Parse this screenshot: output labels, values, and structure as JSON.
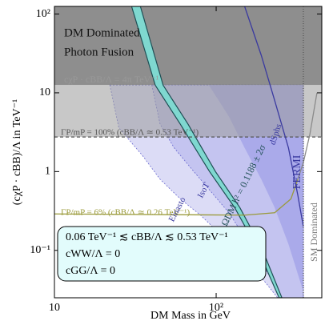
{
  "chart_data": {
    "type": "region",
    "xlabel": "DM Mass in GeV",
    "ylabel": "(cχP · cBB)/Λ  in TeV⁻¹",
    "xlim": [
      10,
      450
    ],
    "ylim": [
      0.025,
      125
    ],
    "log": true,
    "xticks": [
      10,
      {
        "value": 100,
        "label": "10²"
      }
    ],
    "yticks": [
      {
        "value": 0.1,
        "label": "10⁻¹"
      },
      1,
      10,
      {
        "value": 100,
        "label": "10²"
      }
    ],
    "regions": [
      {
        "color": "#dcdcf6",
        "x": [
          22,
          25,
          35,
          45,
          60,
          80,
          110,
          150,
          200,
          240,
          346,
          346
        ],
        "y": [
          12.57,
          3.6,
          1.6,
          0.8,
          0.45,
          0.28,
          0.15,
          0.07,
          0.04,
          0.025,
          0.025,
          12.57
        ]
      },
      {
        "color": "#c4c4f0",
        "x": [
          40,
          45,
          55,
          70,
          90,
          120,
          160,
          210,
          250,
          346,
          346
        ],
        "y": [
          12.57,
          4,
          2,
          1.1,
          0.6,
          0.3,
          0.12,
          0.05,
          0.025,
          0.025,
          12.57
        ]
      },
      {
        "color": "#aaaaea",
        "x": [
          90,
          120,
          150,
          190,
          230,
          280,
          320,
          346,
          346
        ],
        "y": [
          12.57,
          5,
          2,
          0.8,
          0.35,
          0.12,
          0.05,
          0.03,
          12.57
        ]
      },
      {
        "color": "#7a7a7a",
        "opacity": 0.85,
        "x": [
          10,
          450,
          450,
          10
        ],
        "y": [
          12.57,
          12.57,
          125,
          125
        ]
      },
      {
        "color": "#9a9a9a",
        "opacity": 0.55,
        "x": [
          10,
          450,
          450,
          10
        ],
        "y": [
          2.75,
          2.75,
          12.57,
          12.57
        ]
      }
    ],
    "band": {
      "color": "#7fd8d0",
      "edge": "#1f4f55",
      "x": [
        30,
        42,
        60,
        91,
        130,
        182,
        245
      ],
      "x_right": [
        34,
        47,
        67,
        99,
        140,
        194,
        255
      ],
      "y": [
        125,
        12.5,
        4,
        1,
        0.35,
        0.1,
        0.025
      ]
    },
    "lines": [
      {
        "color": "#555555",
        "dash": "4 3",
        "x": [
          10,
          450
        ],
        "y": [
          2.75,
          2.75
        ]
      },
      {
        "color": "#9a9a3a",
        "dash": "",
        "x": [
          10,
          150,
          230,
          290,
          320
        ],
        "y": [
          0.29,
          0.28,
          0.3,
          0.45,
          0.8
        ]
      },
      {
        "color": "#8a8a8a",
        "dash": "",
        "x": [
          320,
          346,
          380,
          420
        ],
        "y": [
          0.8,
          1.3,
          3,
          10
        ]
      },
      {
        "color": "#3a3aa0",
        "dash": "",
        "x": [
          150,
          190,
          230,
          280,
          320,
          346
        ],
        "y": [
          125,
          30,
          8,
          2,
          0.5,
          0.2
        ]
      },
      {
        "color": "#555555",
        "dash": "1 2",
        "x": [
          346,
          346
        ],
        "y": [
          0.025,
          125
        ]
      }
    ],
    "annotations": [
      "DM Dominated",
      "Photon Fusion",
      "cχP · cBB/Λ = 4π TeV⁻¹",
      "ΓP/mP = 100% (cBB/Λ ≃ 0.53 TeV⁻¹)",
      "ΓP/mP = 6% (cBB/Λ ≃ 0.26 TeV⁻¹)",
      "Einasto",
      "IsoT",
      "ΩDM h² = 0.1188 ± 2σ",
      "dSphs",
      "FERMI",
      "SM Dominated"
    ],
    "legend": [
      "0.06 TeV⁻¹ ≲ cBB/Λ ≲ 0.53 TeV⁻¹",
      "cWW/Λ = 0",
      "cGG/Λ = 0"
    ]
  }
}
